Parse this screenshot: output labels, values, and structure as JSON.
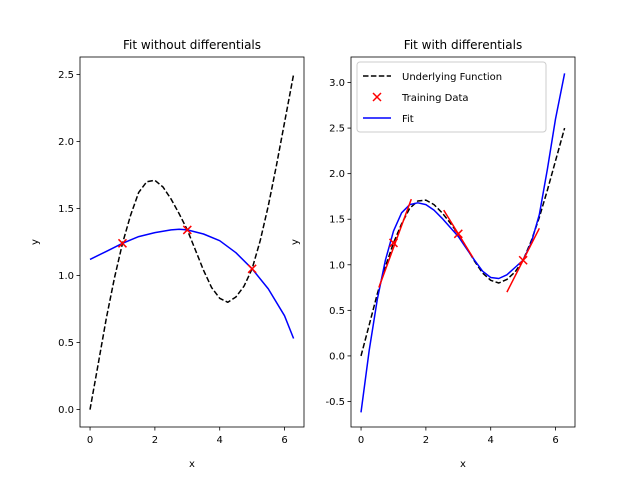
{
  "chart_data": [
    {
      "type": "line",
      "title": "Fit without differentials",
      "xlabel": "x",
      "ylabel": "y",
      "xlim": [
        -0.31,
        6.6
      ],
      "ylim": [
        -0.13,
        2.63
      ],
      "xticks": [
        0,
        2,
        4,
        6
      ],
      "yticks": [
        0.0,
        0.5,
        1.0,
        1.5,
        2.0,
        2.5
      ],
      "grid": false,
      "legend": null,
      "series": [
        {
          "role": "underlying",
          "color": "#000000",
          "style": "dashed",
          "x": [
            0,
            0.25,
            0.5,
            0.75,
            1.0,
            1.25,
            1.5,
            1.75,
            2.0,
            2.25,
            2.5,
            2.75,
            3.0,
            3.25,
            3.5,
            3.75,
            4.0,
            4.25,
            4.5,
            4.75,
            5.0,
            5.25,
            5.5,
            5.75,
            6.0,
            6.28
          ],
          "y": [
            0.0,
            0.34,
            0.68,
            0.98,
            1.24,
            1.45,
            1.62,
            1.7,
            1.71,
            1.66,
            1.57,
            1.46,
            1.34,
            1.19,
            1.04,
            0.91,
            0.83,
            0.8,
            0.84,
            0.92,
            1.05,
            1.26,
            1.52,
            1.82,
            2.14,
            2.5
          ]
        },
        {
          "role": "training",
          "color": "#ff0000",
          "marker": "x",
          "x": [
            1.0,
            3.0,
            5.0
          ],
          "y": [
            1.24,
            1.34,
            1.05
          ]
        },
        {
          "role": "fit",
          "color": "#0000ff",
          "style": "solid",
          "x": [
            0,
            0.5,
            1.0,
            1.5,
            2.0,
            2.5,
            2.75,
            3.0,
            3.5,
            4.0,
            4.5,
            5.0,
            5.5,
            6.0,
            6.28
          ],
          "y": [
            1.12,
            1.18,
            1.24,
            1.29,
            1.32,
            1.34,
            1.345,
            1.34,
            1.31,
            1.26,
            1.17,
            1.05,
            0.9,
            0.7,
            0.53
          ]
        }
      ]
    },
    {
      "type": "line",
      "title": "Fit with differentials",
      "xlabel": "x",
      "ylabel": "y",
      "xlim": [
        -0.31,
        6.6
      ],
      "ylim": [
        -0.78,
        3.28
      ],
      "xticks": [
        0,
        2,
        4,
        6
      ],
      "yticks": [
        -0.5,
        0.0,
        0.5,
        1.0,
        1.5,
        2.0,
        2.5,
        3.0
      ],
      "grid": false,
      "legend": "top-left",
      "legend_entries": [
        "Underlying Function",
        "Training Data",
        "Fit"
      ],
      "series": [
        {
          "name": "Underlying Function",
          "color": "#000000",
          "style": "dashed",
          "x": [
            0,
            0.25,
            0.5,
            0.75,
            1.0,
            1.25,
            1.5,
            1.75,
            2.0,
            2.25,
            2.5,
            2.75,
            3.0,
            3.25,
            3.5,
            3.75,
            4.0,
            4.25,
            4.5,
            4.75,
            5.0,
            5.25,
            5.5,
            5.75,
            6.0,
            6.28
          ],
          "y": [
            0.0,
            0.34,
            0.68,
            0.98,
            1.24,
            1.45,
            1.62,
            1.7,
            1.71,
            1.66,
            1.57,
            1.46,
            1.34,
            1.19,
            1.04,
            0.91,
            0.83,
            0.8,
            0.84,
            0.92,
            1.05,
            1.26,
            1.52,
            1.82,
            2.14,
            2.5
          ]
        },
        {
          "name": "Training Data",
          "color": "#ff0000",
          "marker": "x",
          "x": [
            1.0,
            3.0,
            5.0
          ],
          "y": [
            1.24,
            1.34,
            1.05
          ]
        },
        {
          "name": "Fit",
          "color": "#0000ff",
          "style": "solid",
          "x": [
            0,
            0.25,
            0.5,
            0.75,
            1.0,
            1.25,
            1.5,
            1.75,
            2.0,
            2.25,
            2.5,
            2.75,
            3.0,
            3.25,
            3.5,
            3.75,
            4.0,
            4.25,
            4.5,
            4.75,
            5.0,
            5.25,
            5.5,
            5.75,
            6.0,
            6.28
          ],
          "y": [
            -0.62,
            0.06,
            0.62,
            1.05,
            1.37,
            1.57,
            1.66,
            1.68,
            1.66,
            1.6,
            1.51,
            1.41,
            1.31,
            1.18,
            1.05,
            0.93,
            0.86,
            0.85,
            0.89,
            0.97,
            1.05,
            1.24,
            1.55,
            2.05,
            2.6,
            3.1
          ]
        }
      ],
      "tangents": [
        {
          "color": "#ff0000",
          "x": [
            0.55,
            1.55
          ],
          "y": [
            0.75,
            1.72
          ]
        },
        {
          "color": "#ff0000",
          "x": [
            2.55,
            3.45
          ],
          "y": [
            1.6,
            1.08
          ]
        },
        {
          "color": "#ff0000",
          "x": [
            4.5,
            5.5
          ],
          "y": [
            0.7,
            1.4
          ]
        }
      ]
    }
  ]
}
